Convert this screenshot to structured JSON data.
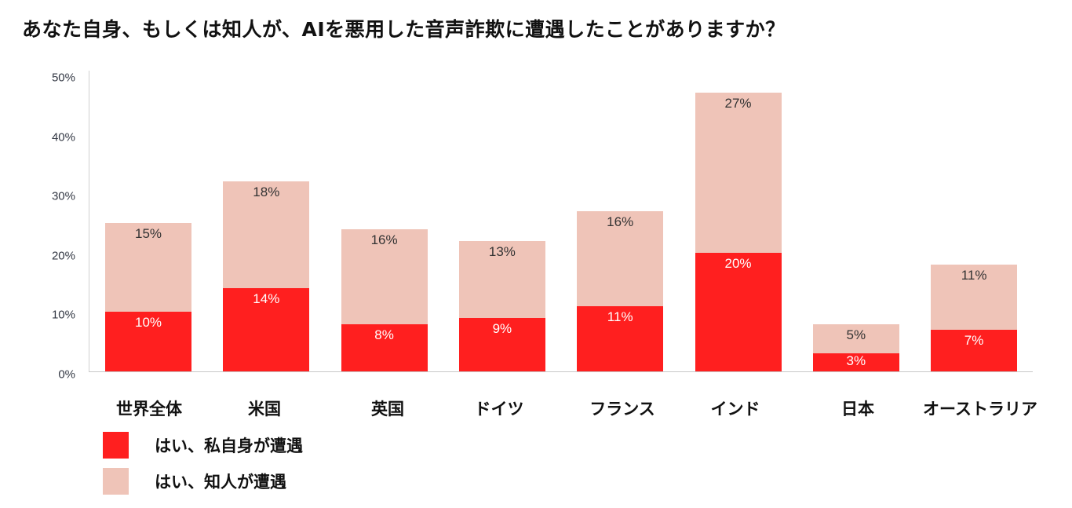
{
  "title": "あなた自身、もしくは知人が、AIを悪用した音声詐欺に遭遇したことがありますか？",
  "colors": {
    "self": "#ff1f1f",
    "acquaintance": "#efc4b8",
    "axis": "#c8c8c8",
    "tick_text": "#333844"
  },
  "y_axis": {
    "ticks": [
      "0%",
      "10%",
      "20%",
      "30%",
      "40%",
      "50%"
    ]
  },
  "legend": [
    {
      "label": "はい、私自身が遭遇",
      "color": "#ff1f1f"
    },
    {
      "label": "はい、知人が遭遇",
      "color": "#efc4b8"
    }
  ],
  "chart_data": {
    "type": "bar",
    "stacked": true,
    "title": "あなた自身、もしくは知人が、AIを悪用した音声詐欺に遭遇したことがありますか？",
    "xlabel": "",
    "ylabel": "",
    "ylim": [
      0,
      50
    ],
    "yticks": [
      "0%",
      "10%",
      "20%",
      "30%",
      "40%",
      "50%"
    ],
    "grid": false,
    "legend_position": "bottom-left",
    "categories": [
      "世界全体",
      "米国",
      "英国",
      "ドイツ",
      "フランス",
      "インド",
      "日本",
      "オーストラリア"
    ],
    "series": [
      {
        "name": "はい、私自身が遭遇",
        "color": "#ff1f1f",
        "values": [
          10,
          14,
          8,
          9,
          11,
          20,
          3,
          7
        ],
        "labels": [
          "10%",
          "14%",
          "8%",
          "9%",
          "11%",
          "20%",
          "3%",
          "7%"
        ]
      },
      {
        "name": "はい、知人が遭遇",
        "color": "#efc4b8",
        "values": [
          15,
          18,
          16,
          13,
          16,
          27,
          5,
          11
        ],
        "labels": [
          "15%",
          "18%",
          "16%",
          "13%",
          "16%",
          "27%",
          "5%",
          "11%"
        ]
      }
    ]
  }
}
